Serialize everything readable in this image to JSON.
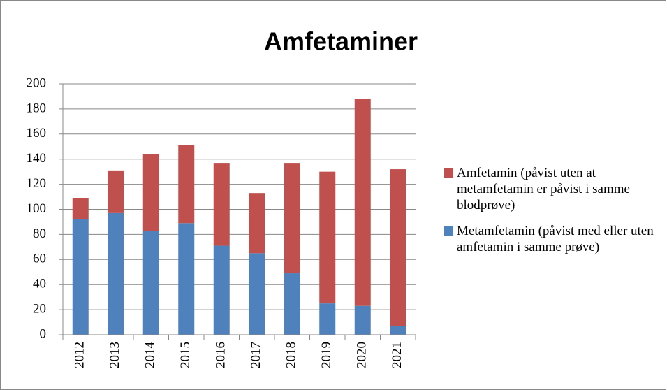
{
  "chart_data": {
    "type": "stacked_bar",
    "title": "Amfetaminer",
    "categories": [
      "2012",
      "2013",
      "2014",
      "2015",
      "2016",
      "2017",
      "2018",
      "2019",
      "2020",
      "2021"
    ],
    "series": [
      {
        "name": "Metamfetamin (påvist med eller uten amfetamin i samme prøve)",
        "color": "#4f81bd",
        "values": [
          92,
          97,
          83,
          89,
          71,
          65,
          49,
          25,
          23,
          7
        ]
      },
      {
        "name": "Amfetamin (påvist uten at metamfetamin er påvist i samme blodprøve)",
        "color": "#c0504d",
        "values": [
          17,
          34,
          61,
          62,
          66,
          48,
          88,
          105,
          165,
          125
        ]
      }
    ],
    "ylim": [
      0,
      200
    ],
    "yticks": [
      0,
      20,
      40,
      60,
      80,
      100,
      120,
      140,
      160,
      180,
      200
    ],
    "grid": true,
    "legend": "right"
  }
}
